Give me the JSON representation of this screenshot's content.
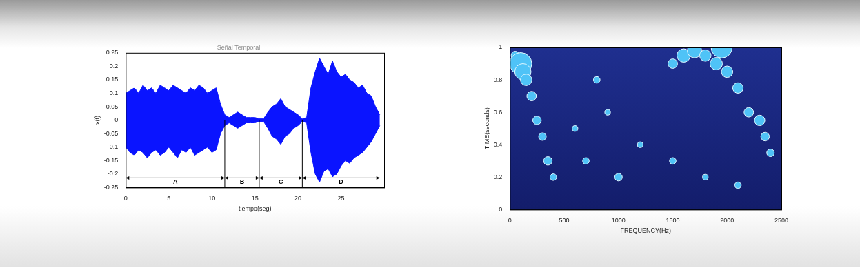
{
  "chart_data": [
    {
      "type": "line",
      "title": "Señal Temporal",
      "x_label": "tiempo(seg)",
      "y_label": "x(t)",
      "color": "#0a14ff",
      "grid": false,
      "xlim": [
        0,
        30
      ],
      "xticks": [
        0,
        5,
        10,
        15,
        20,
        25
      ],
      "ylim": [
        -0.25,
        0.25
      ],
      "yticks": [
        -0.25,
        -0.2,
        -0.15,
        -0.1,
        -0.05,
        0,
        0.05,
        0.1,
        0.15,
        0.2,
        0.25
      ],
      "x": [
        0,
        0.5,
        1,
        1.5,
        2,
        2.5,
        3,
        3.5,
        4,
        4.5,
        5,
        5.5,
        6,
        6.5,
        7,
        7.5,
        8,
        8.5,
        9,
        9.5,
        10,
        10.5,
        11,
        11.5,
        12,
        12.5,
        13,
        13.5,
        14,
        14.5,
        15,
        15.5,
        16,
        16.5,
        17,
        17.5,
        18,
        18.5,
        19,
        19.5,
        20,
        20.5,
        21,
        21.5,
        22,
        22.5,
        23,
        23.5,
        24,
        24.5,
        25,
        25.5,
        26,
        26.5,
        27,
        27.5,
        28,
        28.5,
        29,
        29.5
      ],
      "upper": [
        0.1,
        0.11,
        0.12,
        0.1,
        0.13,
        0.11,
        0.12,
        0.1,
        0.13,
        0.12,
        0.11,
        0.13,
        0.12,
        0.11,
        0.1,
        0.12,
        0.11,
        0.13,
        0.12,
        0.1,
        0.11,
        0.12,
        0.06,
        0.02,
        0.01,
        0.02,
        0.03,
        0.02,
        0.01,
        0.01,
        0.01,
        0.005,
        0.005,
        0.03,
        0.05,
        0.06,
        0.08,
        0.05,
        0.04,
        0.03,
        0.02,
        0.005,
        0.01,
        0.12,
        0.18,
        0.23,
        0.2,
        0.17,
        0.22,
        0.18,
        0.16,
        0.17,
        0.15,
        0.14,
        0.12,
        0.13,
        0.1,
        0.09,
        0.05,
        0.02
      ],
      "lower": [
        -0.1,
        -0.12,
        -0.13,
        -0.11,
        -0.12,
        -0.14,
        -0.12,
        -0.11,
        -0.13,
        -0.12,
        -0.1,
        -0.12,
        -0.14,
        -0.11,
        -0.12,
        -0.1,
        -0.13,
        -0.12,
        -0.11,
        -0.1,
        -0.12,
        -0.11,
        -0.05,
        -0.02,
        -0.01,
        -0.02,
        -0.03,
        -0.02,
        -0.01,
        -0.01,
        -0.01,
        -0.005,
        -0.005,
        -0.03,
        -0.06,
        -0.07,
        -0.09,
        -0.06,
        -0.05,
        -0.03,
        -0.02,
        -0.005,
        -0.01,
        -0.12,
        -0.2,
        -0.23,
        -0.19,
        -0.18,
        -0.21,
        -0.2,
        -0.17,
        -0.15,
        -0.16,
        -0.14,
        -0.13,
        -0.12,
        -0.1,
        -0.08,
        -0.05,
        -0.02
      ],
      "segments": [
        {
          "label": "A",
          "start": 0,
          "end": 11.5
        },
        {
          "label": "B",
          "start": 11.5,
          "end": 15.5
        },
        {
          "label": "C",
          "start": 15.5,
          "end": 20.5
        },
        {
          "label": "D",
          "start": 20.5,
          "end": 29.5
        }
      ]
    },
    {
      "type": "bubble",
      "x_label": "FREQUENCY(Hz)",
      "y_label": "TIME(seconds)",
      "color": "#4fc3f7",
      "grid": false,
      "xlim": [
        0,
        2500
      ],
      "xticks": [
        0,
        500,
        1000,
        1500,
        2000,
        2500
      ],
      "ylim": [
        0,
        1
      ],
      "yticks": [
        0,
        0.2,
        0.4,
        0.6,
        0.8,
        1
      ],
      "points": [
        {
          "frequency": 50,
          "time": 0.95,
          "magnitude": 0.3
        },
        {
          "frequency": 100,
          "time": 0.9,
          "magnitude": 1.0
        },
        {
          "frequency": 120,
          "time": 0.85,
          "magnitude": 0.7
        },
        {
          "frequency": 150,
          "time": 0.8,
          "magnitude": 0.45
        },
        {
          "frequency": 200,
          "time": 0.7,
          "magnitude": 0.35
        },
        {
          "frequency": 250,
          "time": 0.55,
          "magnitude": 0.3
        },
        {
          "frequency": 300,
          "time": 0.45,
          "magnitude": 0.25
        },
        {
          "frequency": 350,
          "time": 0.3,
          "magnitude": 0.3
        },
        {
          "frequency": 400,
          "time": 0.2,
          "magnitude": 0.2
        },
        {
          "frequency": 600,
          "time": 0.5,
          "magnitude": 0.15
        },
        {
          "frequency": 700,
          "time": 0.3,
          "magnitude": 0.2
        },
        {
          "frequency": 800,
          "time": 0.8,
          "magnitude": 0.2
        },
        {
          "frequency": 900,
          "time": 0.6,
          "magnitude": 0.15
        },
        {
          "frequency": 1000,
          "time": 0.2,
          "magnitude": 0.25
        },
        {
          "frequency": 1200,
          "time": 0.4,
          "magnitude": 0.15
        },
        {
          "frequency": 1500,
          "time": 0.9,
          "magnitude": 0.35
        },
        {
          "frequency": 1500,
          "time": 0.3,
          "magnitude": 0.2
        },
        {
          "frequency": 1600,
          "time": 0.95,
          "magnitude": 0.55
        },
        {
          "frequency": 1700,
          "time": 0.98,
          "magnitude": 0.6
        },
        {
          "frequency": 1800,
          "time": 0.95,
          "magnitude": 0.45
        },
        {
          "frequency": 1800,
          "time": 0.2,
          "magnitude": 0.15
        },
        {
          "frequency": 1900,
          "time": 0.9,
          "magnitude": 0.5
        },
        {
          "frequency": 1950,
          "time": 1.0,
          "magnitude": 0.95
        },
        {
          "frequency": 2000,
          "time": 0.85,
          "magnitude": 0.45
        },
        {
          "frequency": 2100,
          "time": 0.75,
          "magnitude": 0.4
        },
        {
          "frequency": 2100,
          "time": 0.15,
          "magnitude": 0.2
        },
        {
          "frequency": 2200,
          "time": 0.6,
          "magnitude": 0.35
        },
        {
          "frequency": 2300,
          "time": 0.55,
          "magnitude": 0.4
        },
        {
          "frequency": 2350,
          "time": 0.45,
          "magnitude": 0.3
        },
        {
          "frequency": 2400,
          "time": 0.35,
          "magnitude": 0.25
        }
      ]
    }
  ]
}
